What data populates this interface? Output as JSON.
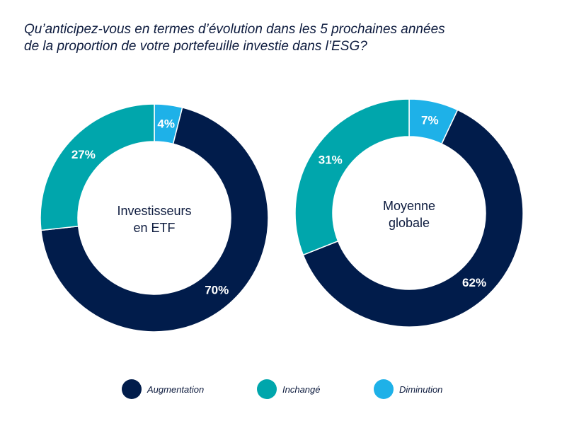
{
  "title_lines": [
    "Qu’anticipez-vous en termes d’évolution dans les 5 prochaines années",
    "de la proportion de votre portefeuille investie dans l’ESG?"
  ],
  "chart_data": [
    {
      "type": "pie",
      "donut": true,
      "center_label": [
        "Investisseurs",
        "en ETF"
      ],
      "slices": [
        {
          "label": "Diminution",
          "value": 4,
          "text": "4%",
          "color": "#1eb1e8"
        },
        {
          "label": "Augmentation",
          "value": 70,
          "text": "70%",
          "color": "#011c4b"
        },
        {
          "label": "Inchangé",
          "value": 27,
          "text": "27%",
          "color": "#00a6ac"
        }
      ]
    },
    {
      "type": "pie",
      "donut": true,
      "center_label": [
        "Moyenne",
        "globale"
      ],
      "slices": [
        {
          "label": "Diminution",
          "value": 7,
          "text": "7%",
          "color": "#1eb1e8"
        },
        {
          "label": "Augmentation",
          "value": 62,
          "text": "62%",
          "color": "#011c4b"
        },
        {
          "label": "Inchangé",
          "value": 31,
          "text": "31%",
          "color": "#00a6ac"
        }
      ]
    }
  ],
  "legend": [
    {
      "label": "Augmentation",
      "color": "#011c4b"
    },
    {
      "label": "Inchangé",
      "color": "#00a6ac"
    },
    {
      "label": "Diminution",
      "color": "#1eb1e8"
    }
  ]
}
